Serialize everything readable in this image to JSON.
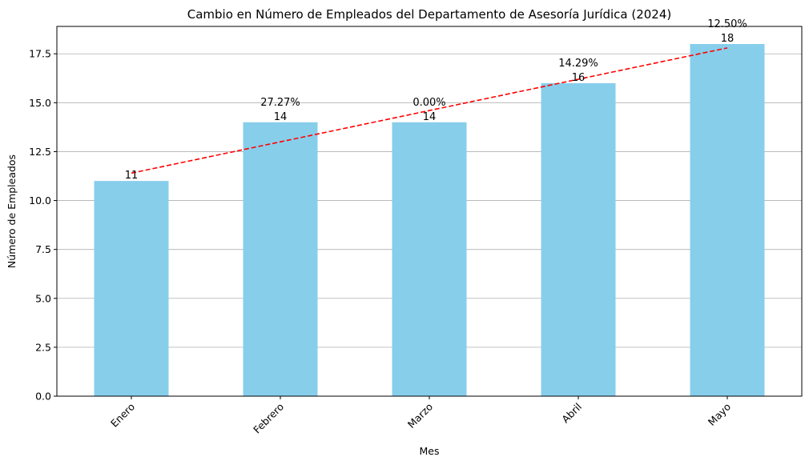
{
  "chart_data": {
    "type": "bar",
    "title": "Cambio en Número de Empleados del Departamento de Asesoría Jurídica (2024)",
    "xlabel": "Mes",
    "ylabel": "Número de Empleados",
    "categories": [
      "Enero",
      "Febrero",
      "Marzo",
      "Abril",
      "Mayo"
    ],
    "values": [
      11,
      14,
      14,
      16,
      18
    ],
    "value_labels": [
      "11",
      "14",
      "14",
      "16",
      "18"
    ],
    "pct_change_labels": [
      "",
      "27.27%",
      "0.00%",
      "14.29%",
      "12.50%"
    ],
    "ylim": [
      0,
      18.9
    ],
    "yticks": [
      0,
      2.5,
      5,
      7.5,
      10,
      12.5,
      15,
      17.5
    ],
    "ytick_labels": [
      "0.0",
      "2.5",
      "5.0",
      "7.5",
      "10.0",
      "12.5",
      "15.0",
      "17.5"
    ],
    "grid": "y",
    "trend_line": {
      "start_value": 11.4,
      "end_value": 17.8,
      "style": "dashed"
    },
    "colors": {
      "bar": "#87ceeb",
      "trend": "#ff0000",
      "grid": "#b0b0b0"
    }
  }
}
